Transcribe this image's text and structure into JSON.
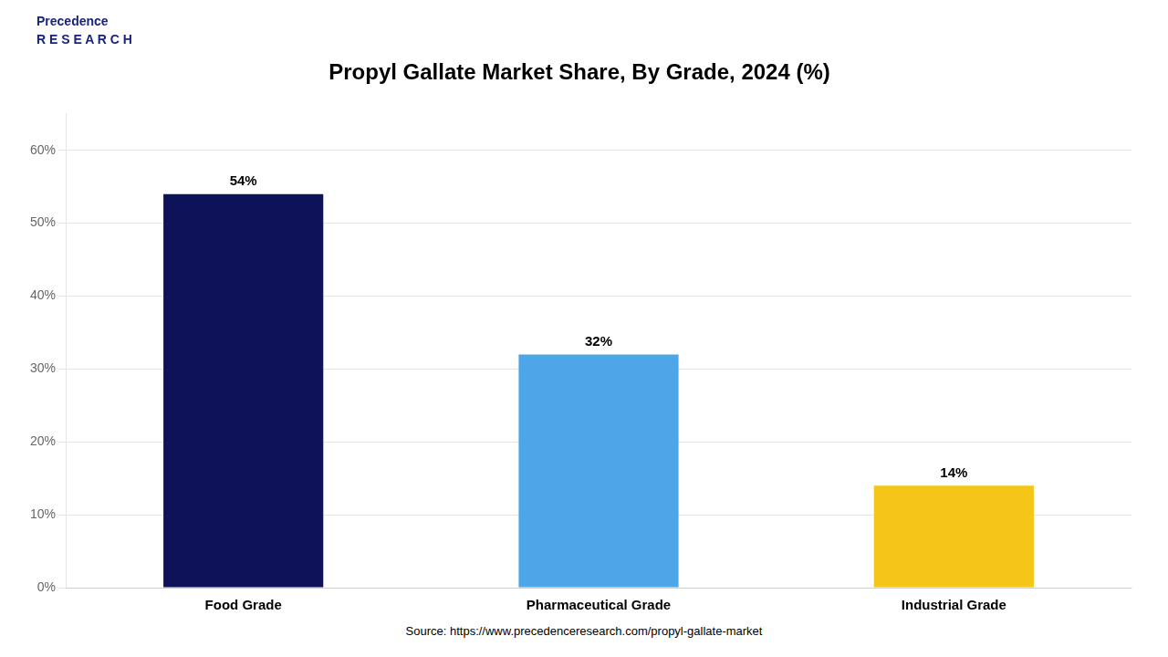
{
  "chart_data": {
    "type": "bar",
    "title": "Propyl Gallate Market Share, By Grade, 2024 (%)",
    "categories": [
      "Food Grade",
      "Pharmaceutical Grade",
      "Industrial Grade"
    ],
    "values": [
      54,
      32,
      14
    ],
    "value_labels": [
      "54%",
      "32%",
      "14%"
    ],
    "data_labels": true,
    "colors": [
      "#0d1259",
      "#4da6e8",
      "#f5c518"
    ],
    "ylim": [
      0,
      65
    ],
    "yticks": [
      {
        "value": 0,
        "label": "0%"
      },
      {
        "value": 10,
        "label": "10%"
      },
      {
        "value": 20,
        "label": "20%"
      },
      {
        "value": 30,
        "label": "30%"
      },
      {
        "value": 40,
        "label": "40%"
      },
      {
        "value": 50,
        "label": "50%"
      },
      {
        "value": 60,
        "label": "60%"
      }
    ],
    "grid": true,
    "legend": false,
    "annotations": [
      "Precedence",
      "R E S E A R C H",
      "Source: https://www.precedenceresearch.com/propyl-gallate-market"
    ]
  }
}
